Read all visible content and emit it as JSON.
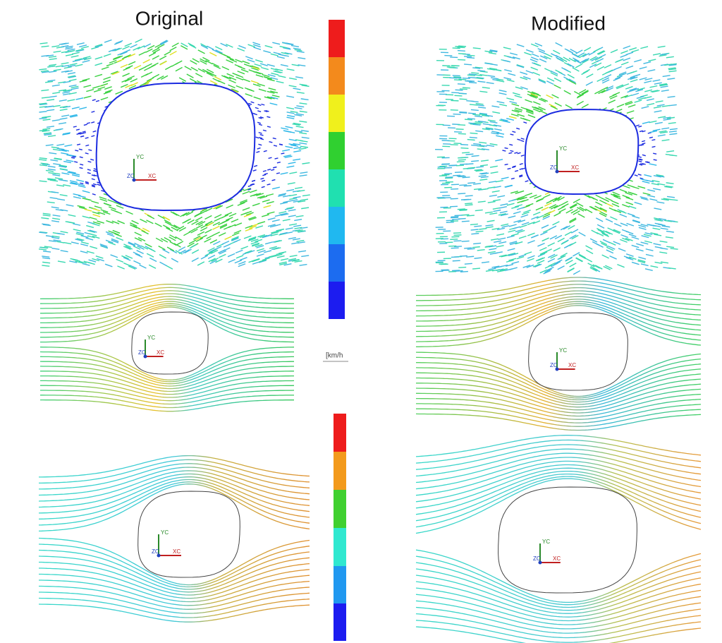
{
  "header": {
    "left": "Original",
    "right": "Modified"
  },
  "legend": {
    "unit": "[km/h"
  },
  "panels": [
    {
      "axes": {
        "y": "YC",
        "x": "XC",
        "z": "ZC"
      }
    },
    {
      "axes": {
        "y": "YC",
        "x": "XC",
        "z": "ZC"
      }
    },
    {
      "axes": {
        "y": "YC",
        "x": "XC",
        "z": "ZC"
      }
    },
    {
      "axes": {
        "y": "YC",
        "x": "XC",
        "z": "ZC"
      }
    },
    {
      "axes": {
        "y": "YC",
        "x": "XC",
        "z": "ZC"
      }
    },
    {
      "axes": {
        "y": "YC",
        "x": "XC",
        "z": "ZC"
      }
    }
  ]
}
